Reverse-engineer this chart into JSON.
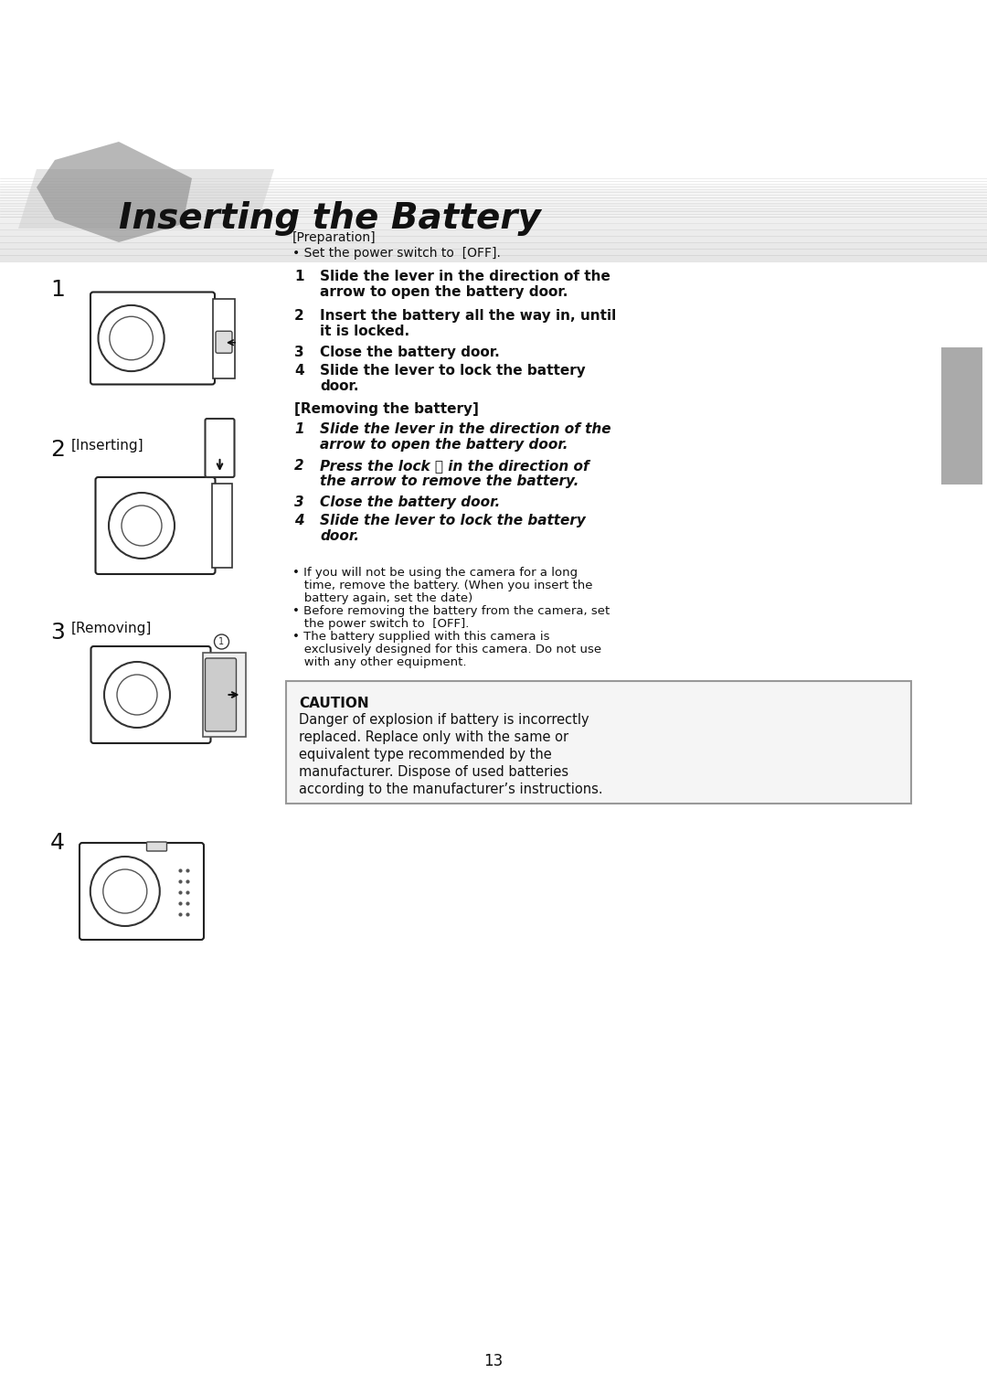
{
  "bg_color": "#ffffff",
  "title": "Inserting the Battery",
  "page_number": "13",
  "preparation_header": "[Preparation]",
  "preparation_bullet": "• Set the power switch to  [OFF].",
  "steps_insert": [
    {
      "num": "1",
      "bold": true,
      "text": "Slide the lever in the direction of the\narrow to open the battery door."
    },
    {
      "num": "2",
      "bold": true,
      "text": "Insert the battery all the way in, until\nit is locked."
    },
    {
      "num": "3",
      "bold": true,
      "text": "Close the battery door."
    },
    {
      "num": "4",
      "bold": true,
      "text": "Slide the lever to lock the battery\ndoor."
    }
  ],
  "removing_header": "[Removing the battery]",
  "steps_remove": [
    {
      "num": "1",
      "bold": false,
      "italic": true,
      "text": "Slide the lever in the direction of the\narrow to open the battery door."
    },
    {
      "num": "2",
      "bold": false,
      "italic": true,
      "text": "Press the lock ⓘ in the direction of\nthe arrow to remove the battery."
    },
    {
      "num": "3",
      "bold": false,
      "italic": true,
      "text": "Close the battery door."
    },
    {
      "num": "4",
      "bold": false,
      "italic": true,
      "text": "Slide the lever to lock the battery\ndoor."
    }
  ],
  "notes": [
    "• If you will not be using the camera for a long\n   time, remove the battery. (When you insert the\n   battery again, set the date)",
    "• Before removing the battery from the camera, set\n   the power switch to  [OFF].",
    "• The battery supplied with this camera is\n   exclusively designed for this camera. Do not use\n   with any other equipment."
  ],
  "caution_title": "CAUTION",
  "caution_text": "Danger of explosion if battery is incorrectly\nreplaced. Replace only with the same or\nequivalent type recommended by the\nmanufacturer. Dispose of used batteries\naccording to the manufacturer’s instructions.",
  "step_labels": [
    "1",
    "2 [Inserting]",
    "3 [Removing]",
    "4"
  ],
  "sidebar_color": "#aaaaaa",
  "title_bg_color": "#d0d0d0",
  "caution_border_color": "#999999",
  "caution_bg_color": "#f5f5f5"
}
